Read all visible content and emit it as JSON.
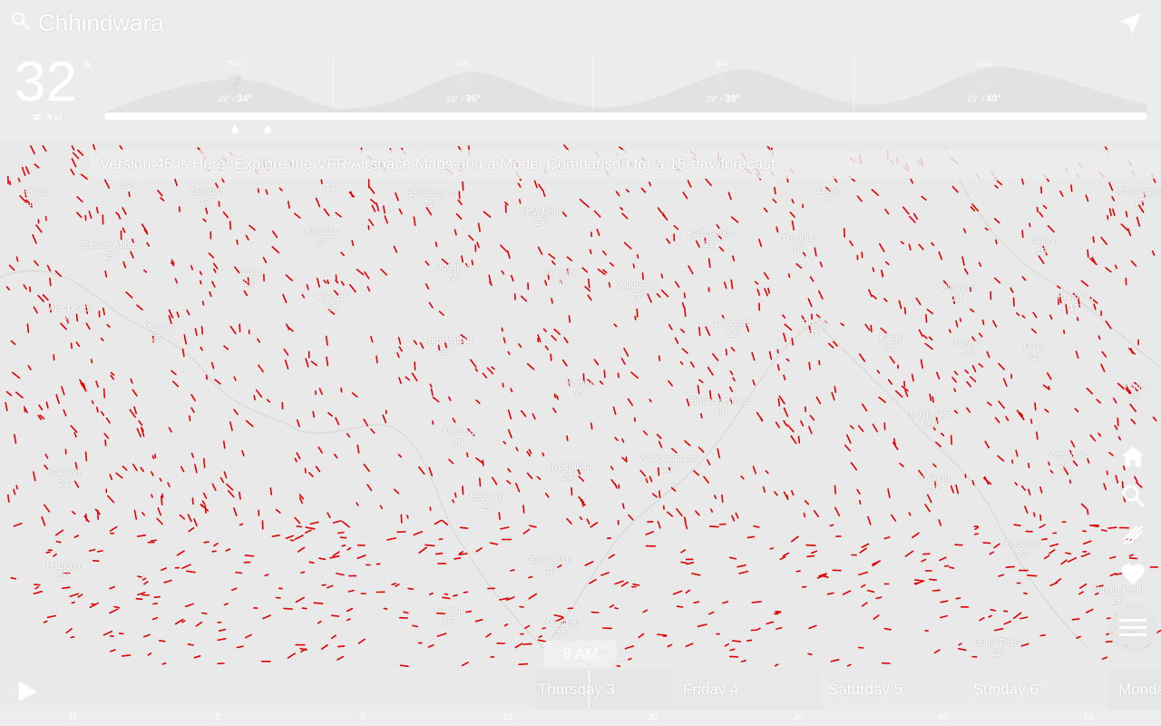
{
  "header": {
    "location": "Chhindwara",
    "temp": "32",
    "deg": "°",
    "wind": "5 kt"
  },
  "forecast": [
    {
      "day": "THU",
      "low": "25°",
      "high": "34°"
    },
    {
      "day": "FRI",
      "low": "22°",
      "high": "36°"
    },
    {
      "day": "SAT",
      "low": "23°",
      "high": "39°"
    },
    {
      "day": "SUN",
      "low": "23°",
      "high": "40°"
    }
  ],
  "banner": "Version 45 is Here! Explore the VFR Airspace Maps and a Model Comparison for a 15-day forecast",
  "cities": [
    {
      "name": "Shiraz",
      "temp": "15°"
    },
    {
      "name": "",
      "temp": "14°"
    },
    {
      "name": "Zahedan",
      "temp": "17°"
    },
    {
      "name": "",
      "temp": "13°"
    },
    {
      "name": "Bahawalpur",
      "temp": "21°"
    },
    {
      "name": "New Delhi",
      "temp": "27°"
    },
    {
      "name": "Kathmandu",
      "temp": "21°"
    },
    {
      "name": "Thimphu",
      "temp": "10°"
    },
    {
      "name": "Bandar Abbas",
      "temp": "23°"
    },
    {
      "name": "Khuzdar",
      "temp": "18°"
    },
    {
      "name": "Turbat",
      "temp": "26°"
    },
    {
      "name": "Jodhpur",
      "temp": "27°"
    },
    {
      "name": "Gwalior",
      "temp": "28°"
    },
    {
      "name": "Allahabad",
      "temp": "27°"
    },
    {
      "name": "Karachi",
      "temp": "27°"
    },
    {
      "name": "Abu Dhabi",
      "temp": "27°"
    },
    {
      "name": "Muscat",
      "temp": "25°"
    },
    {
      "name": "Ahmedabad",
      "temp": "29°"
    },
    {
      "name": "Dhanbad",
      "temp": "32°"
    },
    {
      "name": "Dhaka",
      "temp": "31°"
    },
    {
      "name": "Myitkyina",
      "temp": "28°"
    },
    {
      "name": "Kalay",
      "temp": "27°"
    },
    {
      "name": "Lashio",
      "temp": "24°"
    },
    {
      "name": "Pu'er",
      "temp": "21°"
    },
    {
      "name": "Nagpur",
      "temp": "33°"
    },
    {
      "name": "Bhubaneshwar",
      "temp": "29°"
    },
    {
      "name": "Naypyidaw",
      "temp": "32°"
    },
    {
      "name": "Mumbai",
      "temp": "28°"
    },
    {
      "name": "Hyderabad",
      "temp": "27°"
    },
    {
      "name": "Visakhapatnam",
      "temp": "30°"
    },
    {
      "name": "Salalah",
      "temp": "24°"
    },
    {
      "name": "Yangon",
      "temp": "29°"
    },
    {
      "name": "Belagavi",
      "temp": "25°"
    },
    {
      "name": "Bengaluru",
      "temp": "21°"
    },
    {
      "name": "Bangkok",
      "temp": "30°"
    },
    {
      "name": "Hadibon",
      "temp": "27°"
    },
    {
      "name": "Calicut",
      "temp": "27°"
    },
    {
      "name": "Madurai",
      "temp": "28°"
    },
    {
      "name": "Phnom Penh",
      "temp": "28°"
    },
    {
      "name": "Surat Thani",
      "temp": "29°"
    },
    {
      "name": "Yanjing",
      "temp": "15°"
    },
    {
      "name": "Lhasa",
      "temp": "7°"
    },
    {
      "name": "Chongqing",
      "temp": "17°"
    },
    {
      "name": "Kunming",
      "temp": "17°"
    },
    {
      "name": "Hanoi",
      "temp": "23°"
    },
    {
      "name": "Vientiane",
      "temp": "28°"
    }
  ],
  "timeline": {
    "current_time": "8 AM",
    "days": [
      "Thursday 3",
      "Friday 4",
      "Saturday 5",
      "Sunday 6",
      "Monday"
    ]
  },
  "scale": {
    "unit": "kt",
    "ticks": [
      "0",
      "5",
      "10",
      "20",
      "30",
      "40",
      "60"
    ]
  },
  "colors": {
    "particle": "#e00000",
    "background": "#ececec",
    "text": "#ffffff"
  }
}
